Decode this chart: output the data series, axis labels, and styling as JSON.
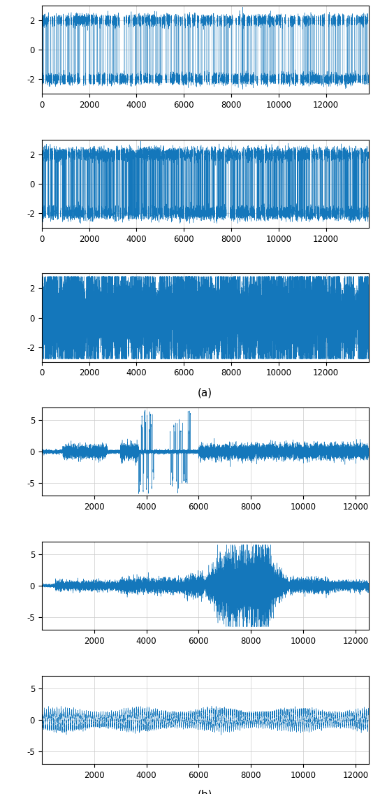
{
  "line_color": "#1477bb",
  "background_color": "#ffffff",
  "panel_a": {
    "n_panels": 3,
    "xlim": [
      0,
      13800
    ],
    "ylim": [
      -3,
      3
    ],
    "yticks": [
      -2,
      0,
      2
    ],
    "xticks": [
      0,
      2000,
      4000,
      6000,
      8000,
      10000,
      12000
    ],
    "label": "(a)"
  },
  "panel_b": {
    "n_panels": 3,
    "xlim": [
      0,
      12500
    ],
    "ylim": [
      -7,
      7
    ],
    "yticks": [
      -5,
      0,
      5
    ],
    "xticks": [
      2000,
      4000,
      6000,
      8000,
      10000,
      12000
    ],
    "label": "(b)"
  },
  "linewidth": 0.3
}
